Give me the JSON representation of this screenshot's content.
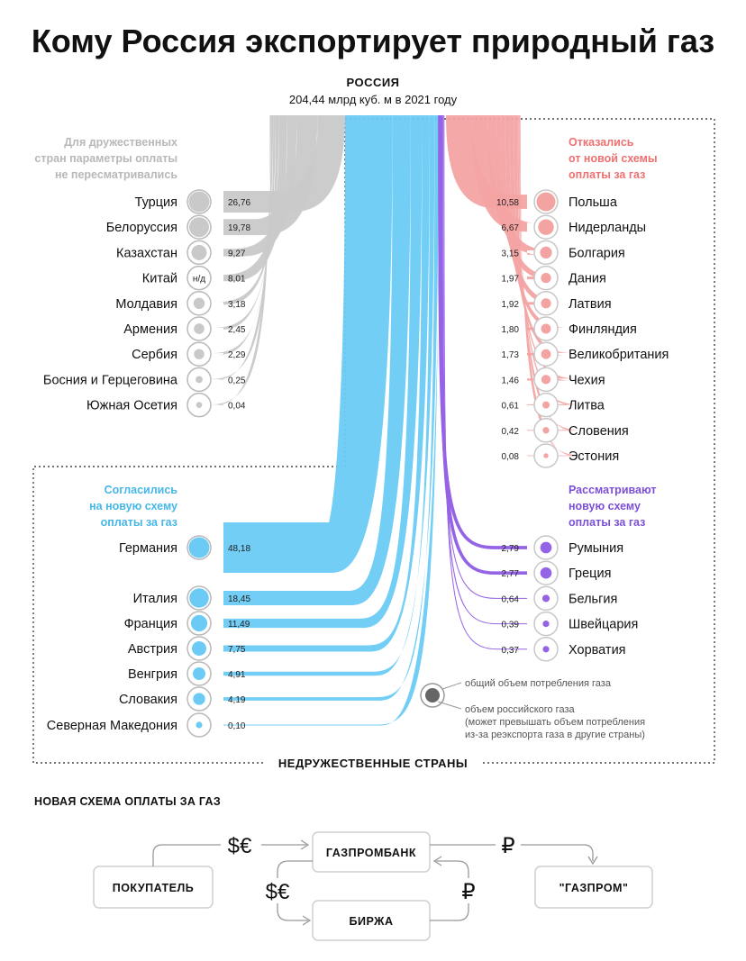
{
  "title": "Кому Россия экспортирует природный газ",
  "source": {
    "name": "РОССИЯ",
    "volume": "204,44 млрд куб. м в 2021 году"
  },
  "notes": {
    "friendly": [
      "Для дружественных",
      "стран параметры оплаты",
      "не пересматривались"
    ],
    "refused": [
      "Отказались",
      "от новой схемы",
      "оплаты за газ"
    ],
    "agreed": [
      "Согласились",
      "на новую схему",
      "оплаты за газ"
    ],
    "considering": [
      "Рассматривают",
      "новую схему",
      "оплаты за газ"
    ]
  },
  "groups_label": {
    "unfriendly": "НЕДРУЖЕСТВЕННЫЕ СТРАНЫ"
  },
  "chart_data": {
    "type": "sankey",
    "unit": "млрд куб. м",
    "total": 204.44,
    "colors": {
      "friendly": "#c9c9c9",
      "refused": "#f4a3a3",
      "agreed": "#6ccbf5",
      "considering": "#9563e6"
    },
    "friendly": [
      {
        "name": "Турция",
        "value": "26,76"
      },
      {
        "name": "Белоруссия",
        "value": "19,78"
      },
      {
        "name": "Казахстан",
        "value": "9,27"
      },
      {
        "name": "Китай",
        "value": "8,01",
        "note": "н/д"
      },
      {
        "name": "Молдавия",
        "value": "3,18"
      },
      {
        "name": "Армения",
        "value": "2,45"
      },
      {
        "name": "Сербия",
        "value": "2,29"
      },
      {
        "name": "Босния и Герцеговина",
        "value": "0,25"
      },
      {
        "name": "Южная Осетия",
        "value": "0,04"
      }
    ],
    "refused": [
      {
        "name": "Польша",
        "value": "10,58"
      },
      {
        "name": "Нидерланды",
        "value": "6,67"
      },
      {
        "name": "Болгария",
        "value": "3,15"
      },
      {
        "name": "Дания",
        "value": "1,97"
      },
      {
        "name": "Латвия",
        "value": "1,92"
      },
      {
        "name": "Финляндия",
        "value": "1,80"
      },
      {
        "name": "Великобритания",
        "value": "1,73"
      },
      {
        "name": "Чехия",
        "value": "1,46"
      },
      {
        "name": "Литва",
        "value": "0,61"
      },
      {
        "name": "Словения",
        "value": "0,42"
      },
      {
        "name": "Эстония",
        "value": "0,08"
      }
    ],
    "agreed": [
      {
        "name": "Германия",
        "value": "48,18"
      },
      {
        "name": "Италия",
        "value": "18,45"
      },
      {
        "name": "Франция",
        "value": "11,49"
      },
      {
        "name": "Австрия",
        "value": "7,75"
      },
      {
        "name": "Венгрия",
        "value": "4,91"
      },
      {
        "name": "Словакия",
        "value": "4,19"
      },
      {
        "name": "Северная Македония",
        "value": "0,10"
      }
    ],
    "considering": [
      {
        "name": "Румыния",
        "value": "2,79"
      },
      {
        "name": "Греция",
        "value": "2,77"
      },
      {
        "name": "Бельгия",
        "value": "0,64"
      },
      {
        "name": "Швейцария",
        "value": "0,39"
      },
      {
        "name": "Хорватия",
        "value": "0,37"
      }
    ]
  },
  "legend": {
    "outer": "общий объем потребления газа",
    "inner": [
      "объем российского газа",
      "(может превышать объем потребления",
      "из-за реэкспорта газа в другие страны)"
    ]
  },
  "scheme": {
    "title": "НОВАЯ СХЕМА ОПЛАТЫ ЗА ГАЗ",
    "buyer": "ПОКУПАТЕЛЬ",
    "bank": "ГАЗПРОМБАНК",
    "exchange": "БИРЖА",
    "gazprom": "\"ГАЗПРОМ\"",
    "currency_foreign": "$€",
    "currency_rub": "₽"
  }
}
